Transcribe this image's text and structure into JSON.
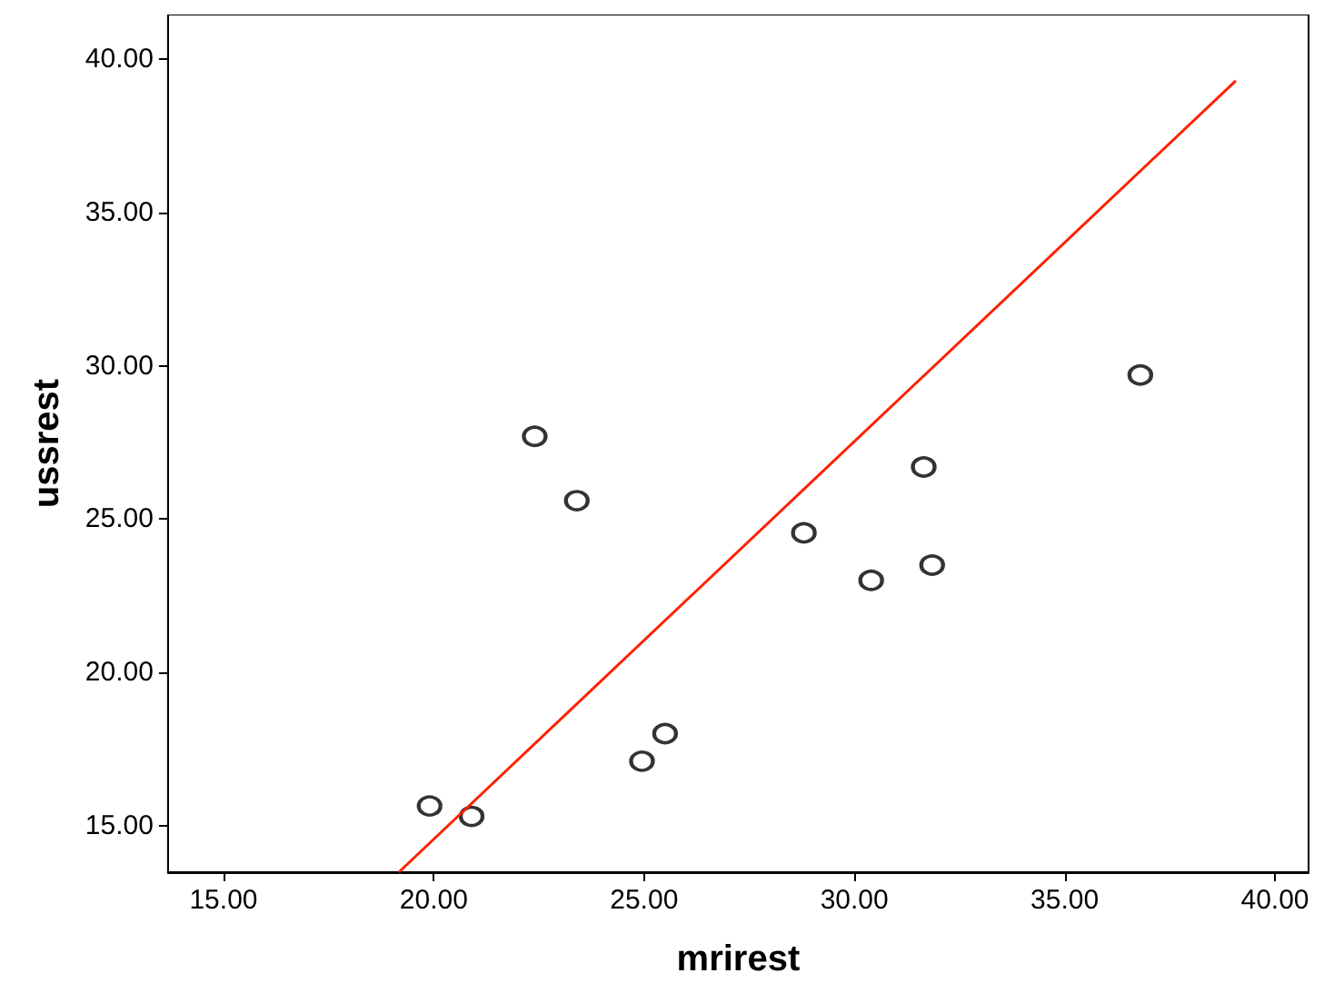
{
  "chart_data": {
    "type": "scatter",
    "xlabel": "mrirest",
    "ylabel": "ussrest",
    "xlim": [
      13.68,
      40.8
    ],
    "ylim": [
      13.48,
      41.46
    ],
    "xticks": [
      {
        "value": 15,
        "label": "15.00"
      },
      {
        "value": 20,
        "label": "20.00"
      },
      {
        "value": 25,
        "label": "25.00"
      },
      {
        "value": 30,
        "label": "30.00"
      },
      {
        "value": 35,
        "label": "35.00"
      },
      {
        "value": 40,
        "label": "40.00"
      }
    ],
    "yticks": [
      {
        "value": 15,
        "label": "15.00"
      },
      {
        "value": 20,
        "label": "20.00"
      },
      {
        "value": 25,
        "label": "25.00"
      },
      {
        "value": 30,
        "label": "30.00"
      },
      {
        "value": 35,
        "label": "35.00"
      },
      {
        "value": 40,
        "label": "40.00"
      }
    ],
    "grid": false,
    "marker": "circle",
    "series": [
      {
        "color": "#000000",
        "x": [
          19.9,
          20.9,
          22.4,
          23.4,
          24.95,
          25.5,
          28.8,
          30.4,
          31.65,
          31.85,
          36.8
        ],
        "values": [
          15.64,
          15.3,
          27.7,
          25.6,
          17.1,
          18.0,
          24.55,
          23.0,
          26.7,
          23.5,
          29.7
        ]
      },
      {
        "type": "line",
        "color": "#ff2000",
        "marker": "none",
        "line_style": "solid",
        "x": [
          19.17,
          39.07
        ],
        "values": [
          13.48,
          39.3
        ]
      }
    ]
  }
}
